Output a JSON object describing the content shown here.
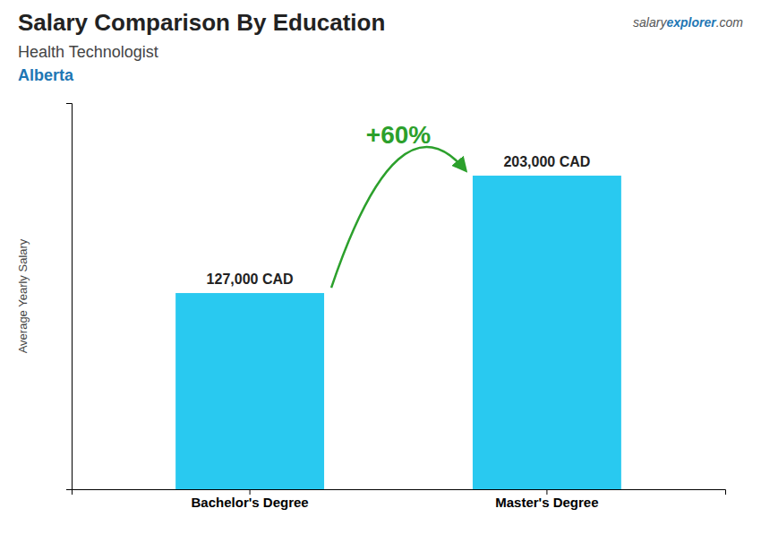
{
  "chart_data": {
    "type": "bar",
    "title": "Salary Comparison By Education",
    "subtitle": "Health Technologist",
    "ylabel": "Average Yearly Salary",
    "categories": [
      "Bachelor's Degree",
      "Master's Degree"
    ],
    "values": [
      127000,
      203000
    ],
    "value_labels": [
      "127,000 CAD",
      "203,000 CAD"
    ],
    "data_labels": true,
    "color": "#29C9F0",
    "ylim": [
      0,
      250000
    ],
    "tick_labels": "x",
    "annotations": [
      "Alberta",
      "+60%",
      "salary",
      "explorer",
      ".com"
    ]
  }
}
